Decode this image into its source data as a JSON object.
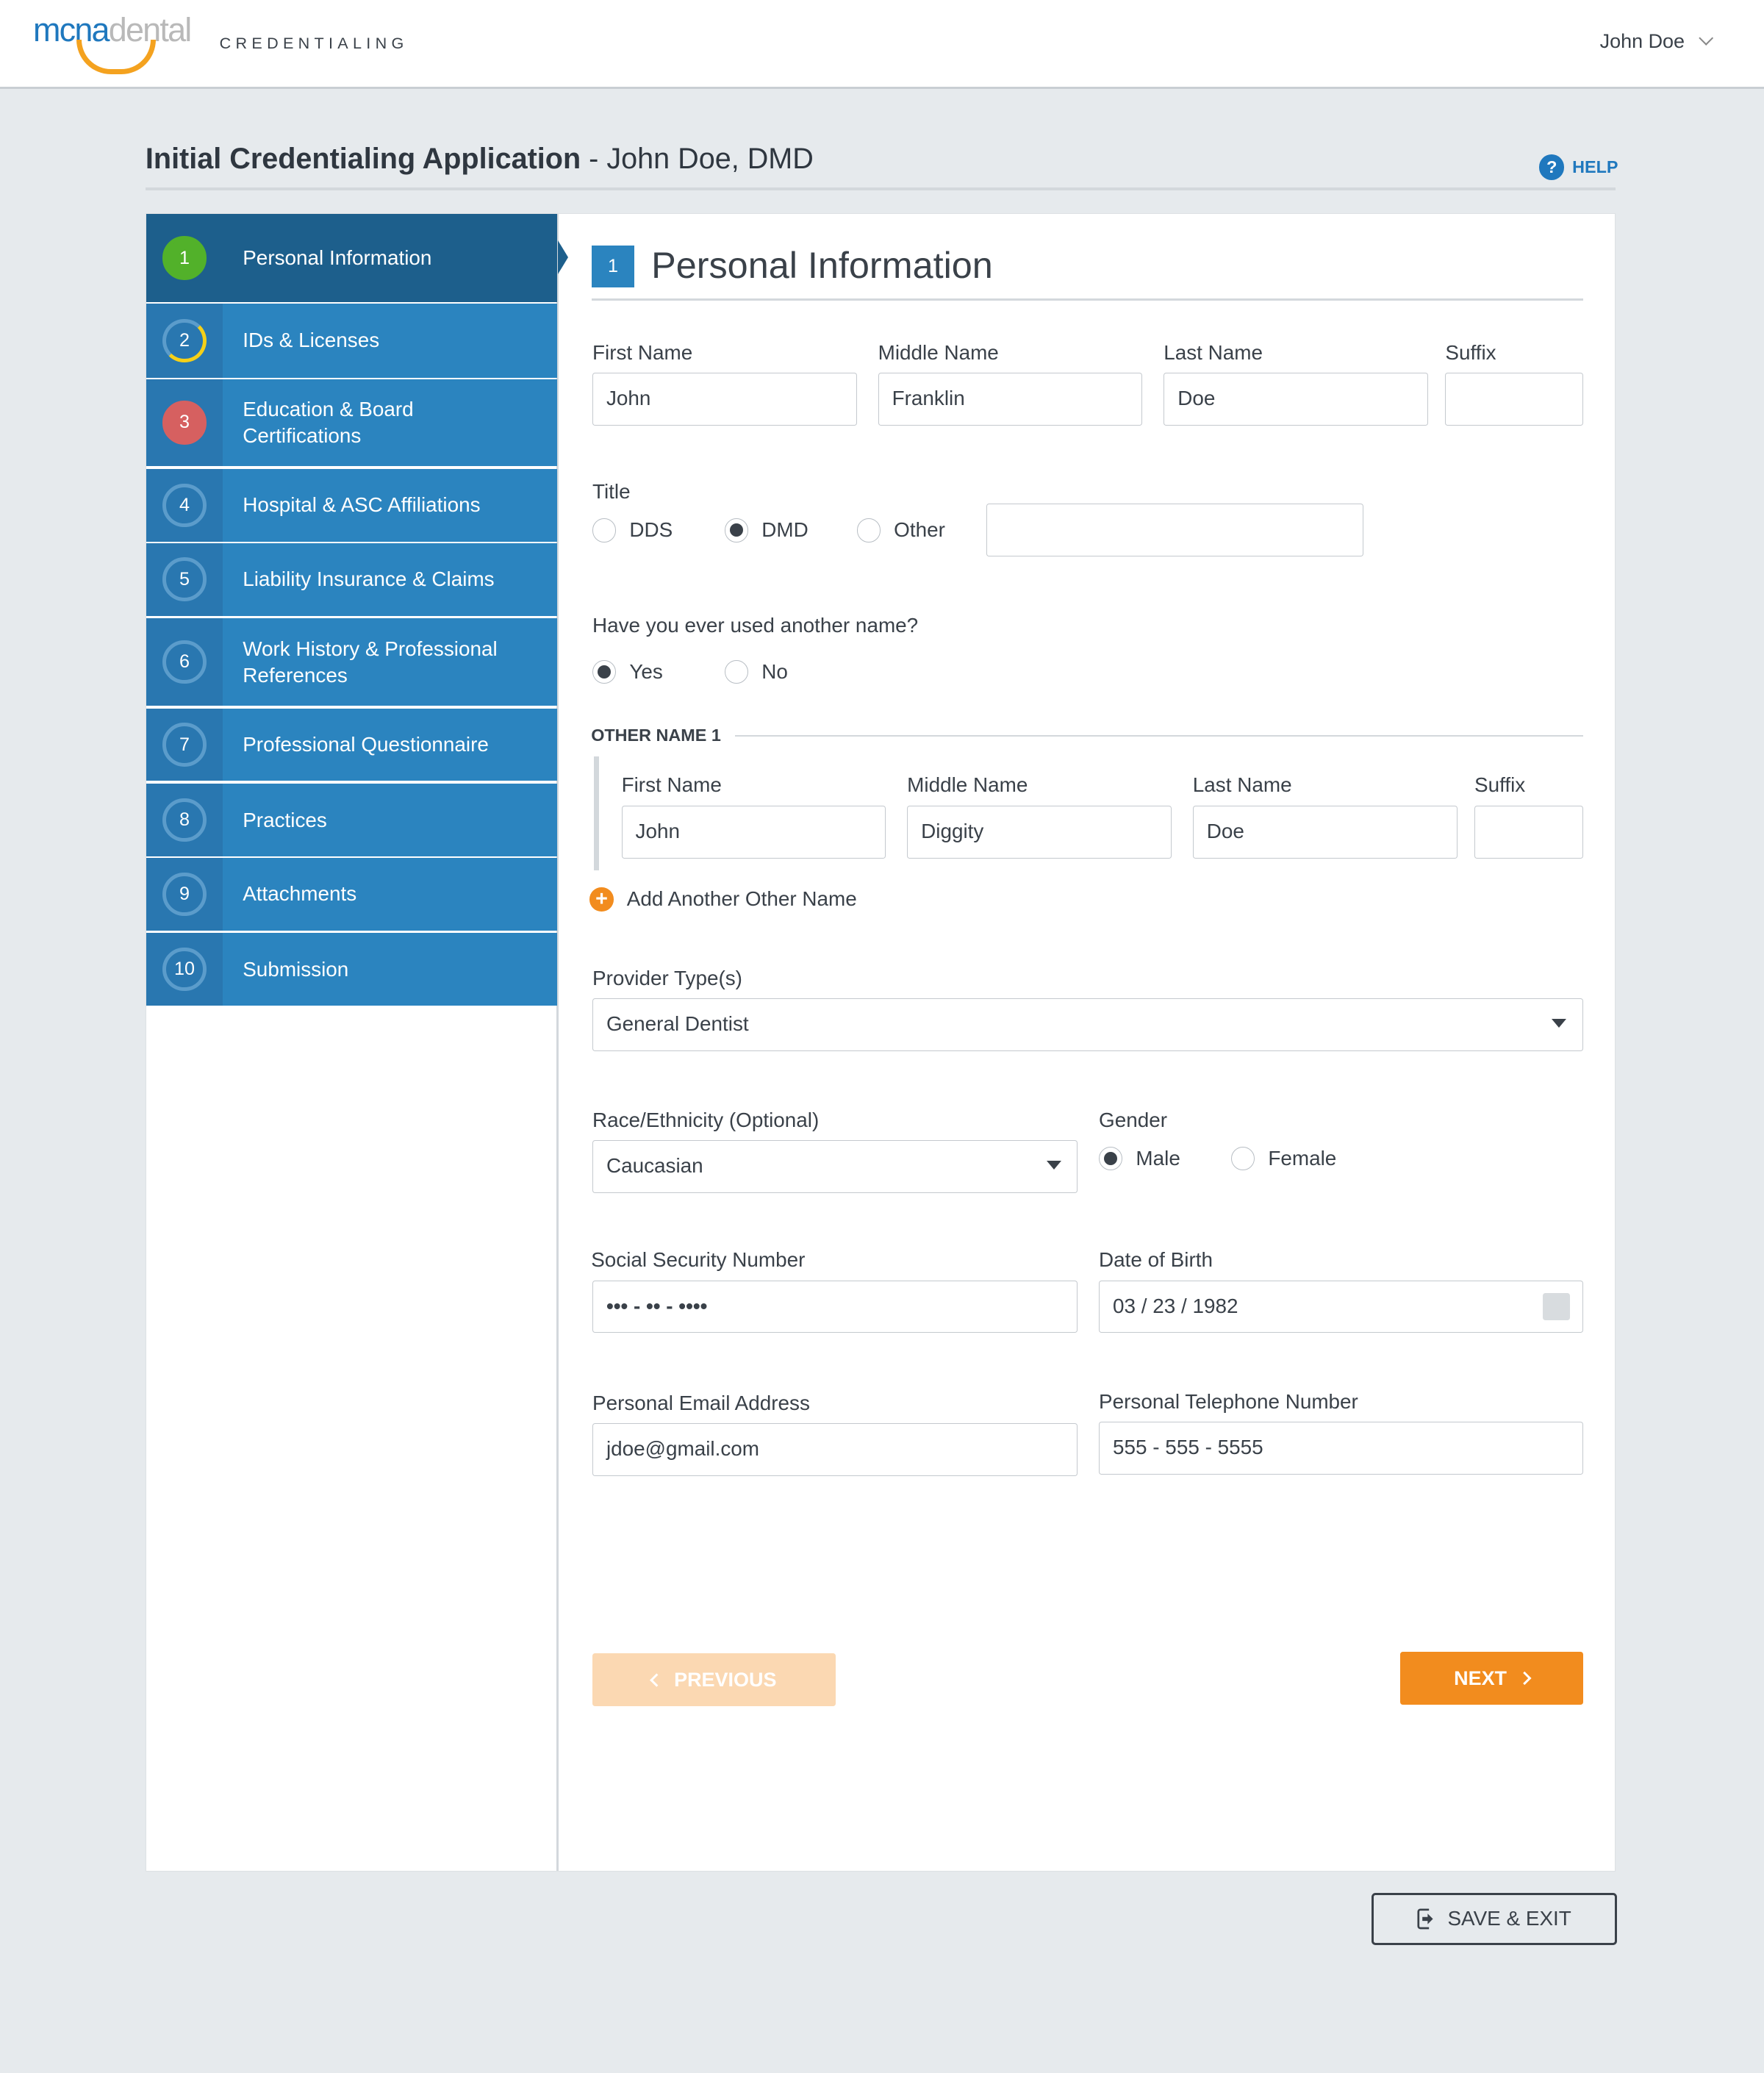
{
  "header": {
    "logo_part1": "mcna",
    "logo_part2": "dental",
    "product": "CREDENTIALING",
    "user": "John Doe"
  },
  "page": {
    "title_bold": "Initial Credentialing Application",
    "title_rest": " - John Doe, DMD",
    "help": "HELP"
  },
  "sidebar": {
    "items": [
      {
        "num": "1",
        "label": "Personal Information",
        "status": "complete",
        "color": "#52b12a"
      },
      {
        "num": "2",
        "label": "IDs & Licenses",
        "status": "in-progress",
        "color": "#f5d018"
      },
      {
        "num": "3",
        "label": "Education & Board Certifications",
        "status": "error",
        "color": "#d66060"
      },
      {
        "num": "4",
        "label": "Hospital & ASC Affiliations"
      },
      {
        "num": "5",
        "label": "Liability Insurance & Claims"
      },
      {
        "num": "6",
        "label": "Work History & Professional References"
      },
      {
        "num": "7",
        "label": "Professional Questionnaire"
      },
      {
        "num": "8",
        "label": "Practices"
      },
      {
        "num": "9",
        "label": "Attachments"
      },
      {
        "num": "10",
        "label": "Submission"
      }
    ]
  },
  "section": {
    "num": "1",
    "title": "Personal Information"
  },
  "name": {
    "first_label": "First Name",
    "first": "John",
    "middle_label": "Middle Name",
    "middle": "Franklin",
    "last_label": "Last Name",
    "last": "Doe",
    "suffix_label": "Suffix",
    "suffix": ""
  },
  "title_field": {
    "label": "Title",
    "options": [
      "DDS",
      "DMD",
      "Other"
    ],
    "selected": "DMD",
    "other_value": ""
  },
  "other_name_q": {
    "label": "Have you ever used another name?",
    "options": [
      "Yes",
      "No"
    ],
    "selected": "Yes"
  },
  "other_name": {
    "heading": "OTHER NAME 1",
    "first_label": "First Name",
    "first": "John",
    "middle_label": "Middle Name",
    "middle": "Diggity",
    "last_label": "Last Name",
    "last": "Doe",
    "suffix_label": "Suffix",
    "suffix": "",
    "add": "Add Another Other Name"
  },
  "provider": {
    "label": "Provider Type(s)",
    "value": "General Dentist"
  },
  "race": {
    "label": "Race/Ethnicity (Optional)",
    "value": "Caucasian"
  },
  "gender": {
    "label": "Gender",
    "options": [
      "Male",
      "Female"
    ],
    "selected": "Male"
  },
  "ssn": {
    "label": "Social Security Number",
    "value": "••• - •• - ••••"
  },
  "dob": {
    "label": "Date of Birth",
    "value": "03 / 23 / 1982"
  },
  "email": {
    "label": "Personal Email Address",
    "value": "jdoe@gmail.com"
  },
  "phone": {
    "label": "Personal Telephone Number",
    "value": "555 - 555 - 5555"
  },
  "buttons": {
    "previous": "PREVIOUS",
    "next": "NEXT",
    "save_exit": "SAVE & EXIT"
  },
  "colors": {
    "primary": "#2b84bf",
    "active": "#1d5f8c",
    "accent": "#f28c1e"
  }
}
